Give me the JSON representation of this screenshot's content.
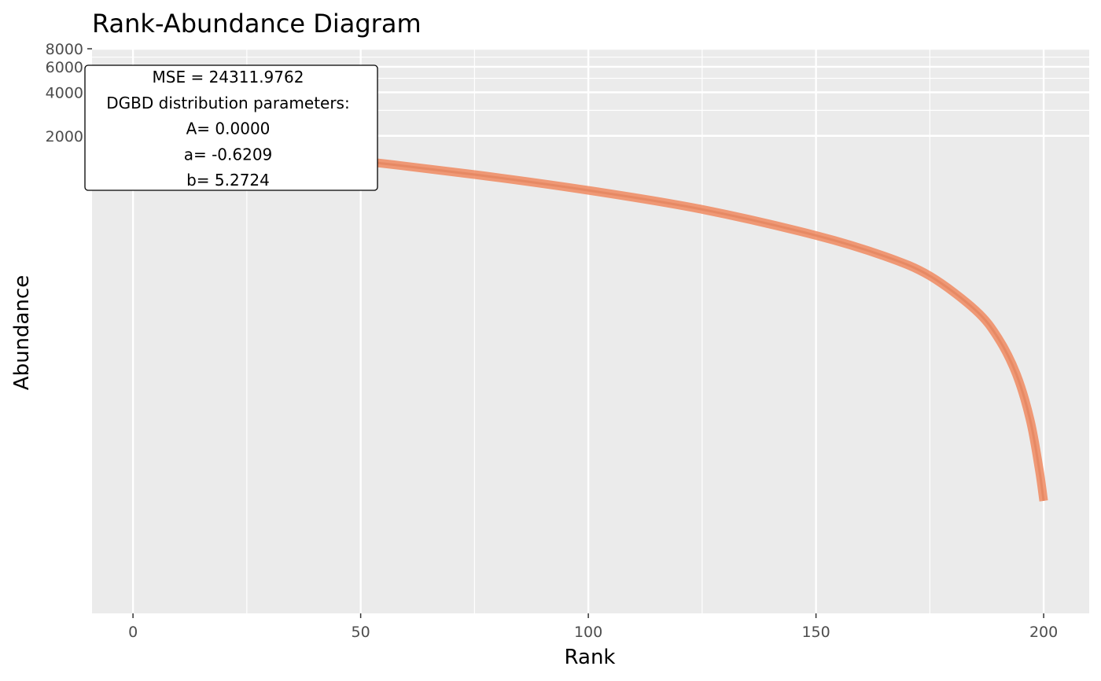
{
  "chart_data": {
    "type": "line",
    "title": "Rank-Abundance Diagram",
    "xlabel": "Rank",
    "ylabel": "Abundance",
    "xlim": [
      -9,
      210
    ],
    "ylim": [
      1,
      8000
    ],
    "y_scale": "log",
    "x_ticks": [
      0,
      50,
      100,
      150,
      200
    ],
    "x_tick_labels": [
      "0",
      "50",
      "100",
      "150",
      "200"
    ],
    "x_minor_ticks": [
      25,
      75,
      125,
      175
    ],
    "y_ticks": [
      2000,
      4000,
      6000,
      8000
    ],
    "y_tick_labels": [
      "2000",
      "4000",
      "6000",
      "8000"
    ],
    "y_minor_ticks": [
      3000,
      5000,
      7000
    ],
    "grid": true,
    "legend": "none",
    "colors": {
      "panel_background": "#ebebeb",
      "grid": "#ffffff",
      "curve": "#f08a60",
      "curve_core": "#e07e58"
    },
    "series": [
      {
        "x": [
          1,
          10,
          25,
          50,
          75,
          100,
          125,
          150,
          165,
          175,
          185,
          190,
          194,
          197,
          199,
          200
        ],
        "y": [
          1920,
          1800,
          1620,
          1340,
          1080,
          840,
          620,
          410,
          295,
          215,
          125,
          80,
          45,
          22,
          10,
          6
        ]
      }
    ],
    "annotation": {
      "lines": [
        "MSE = 24311.9762",
        "DGBD distribution parameters:",
        "A= 0.0000",
        "a= -0.6209",
        "b= 5.2724"
      ]
    }
  }
}
